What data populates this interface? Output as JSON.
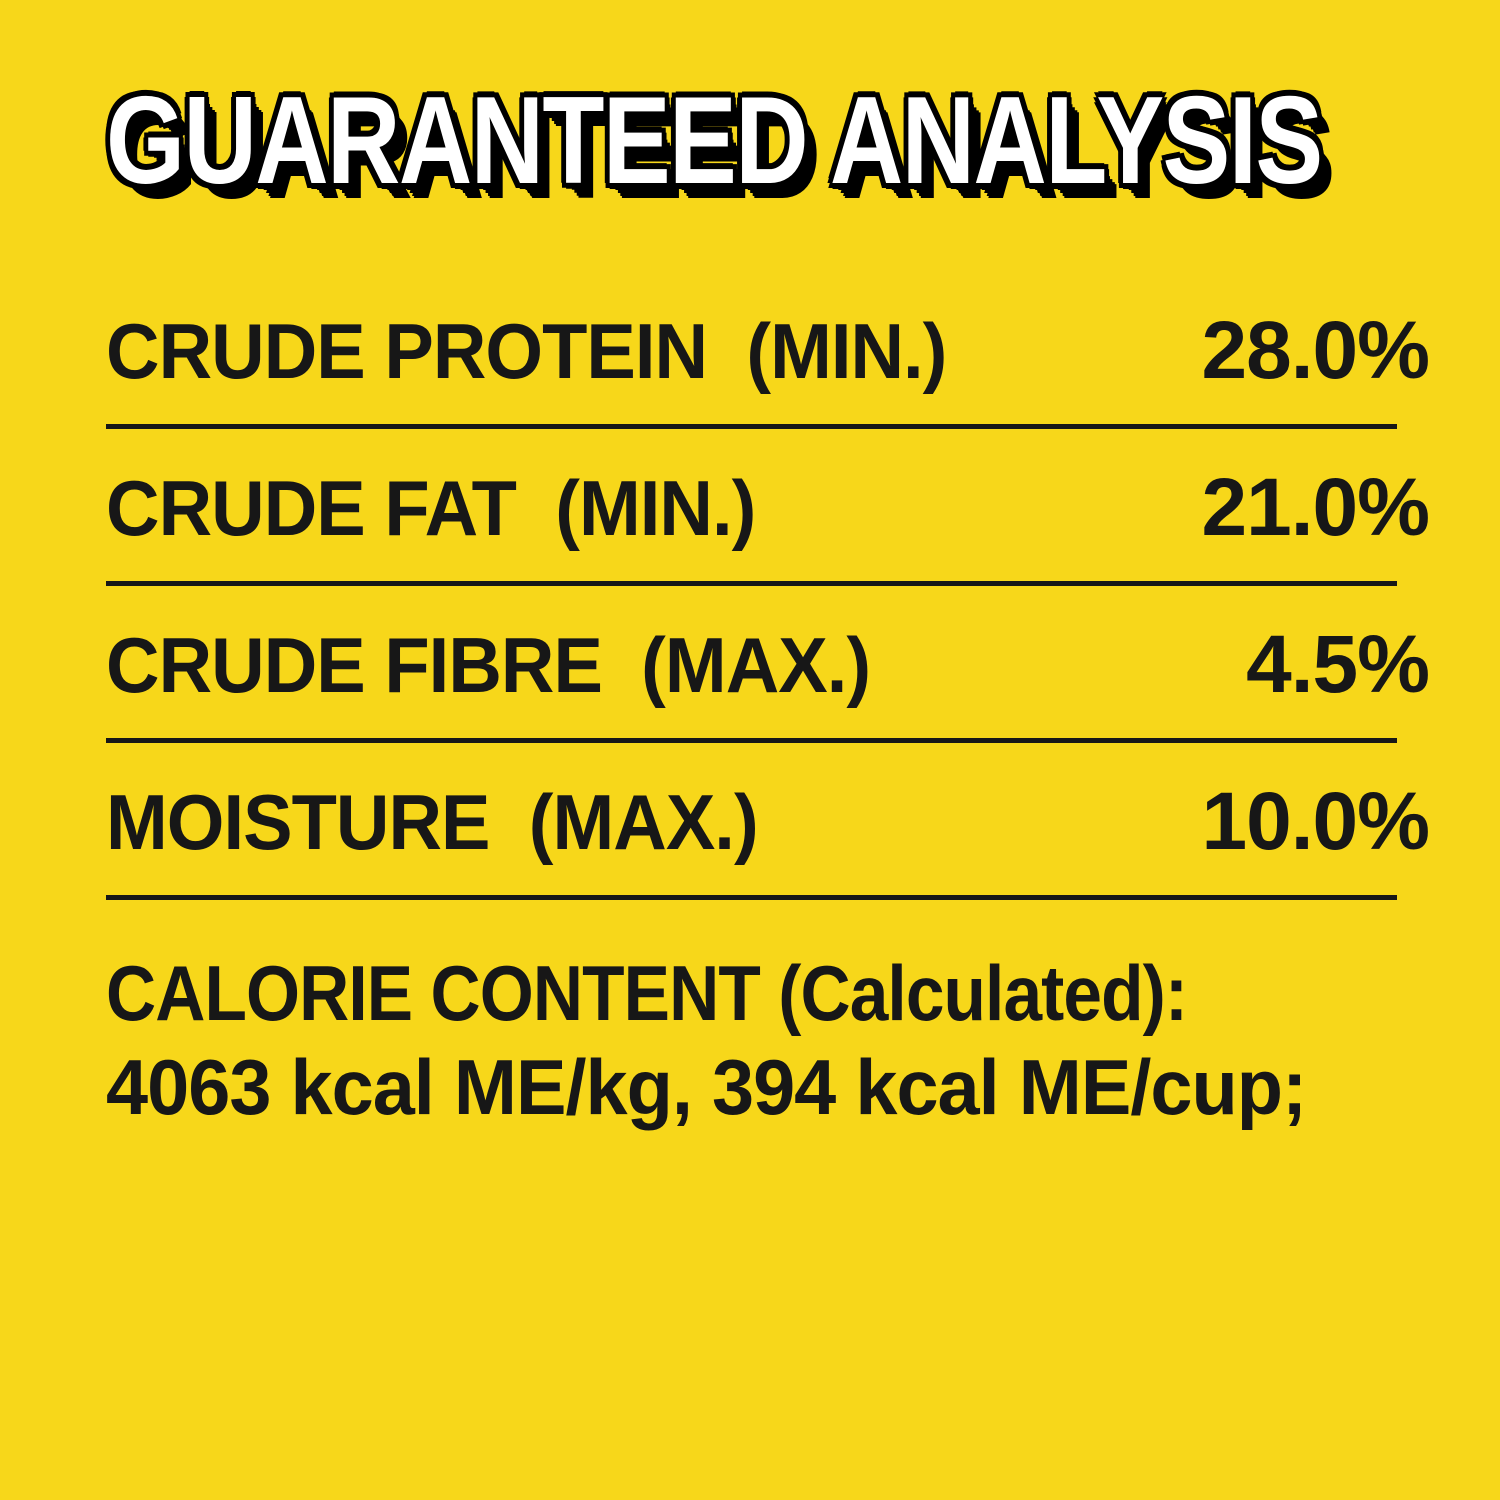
{
  "title": "GUARANTEED ANALYSIS",
  "analysis": {
    "rows": [
      {
        "label": "CRUDE PROTEIN  (MIN.)",
        "value": "28.0%"
      },
      {
        "label": "CRUDE FAT  (MIN.)",
        "value": "21.0%"
      },
      {
        "label": "CRUDE FIBRE  (MAX.)",
        "value": "4.5%"
      },
      {
        "label": "MOISTURE  (MAX.)",
        "value": "10.0%"
      }
    ]
  },
  "calorie": {
    "heading": "CALORIE CONTENT (Calculated):",
    "value": "4063 kcal ME/kg, 394 kcal ME/cup;"
  },
  "colors": {
    "background": "#F7D71A",
    "text": "#171717",
    "title_fill": "#FFFFFF",
    "title_outline": "#000000"
  }
}
